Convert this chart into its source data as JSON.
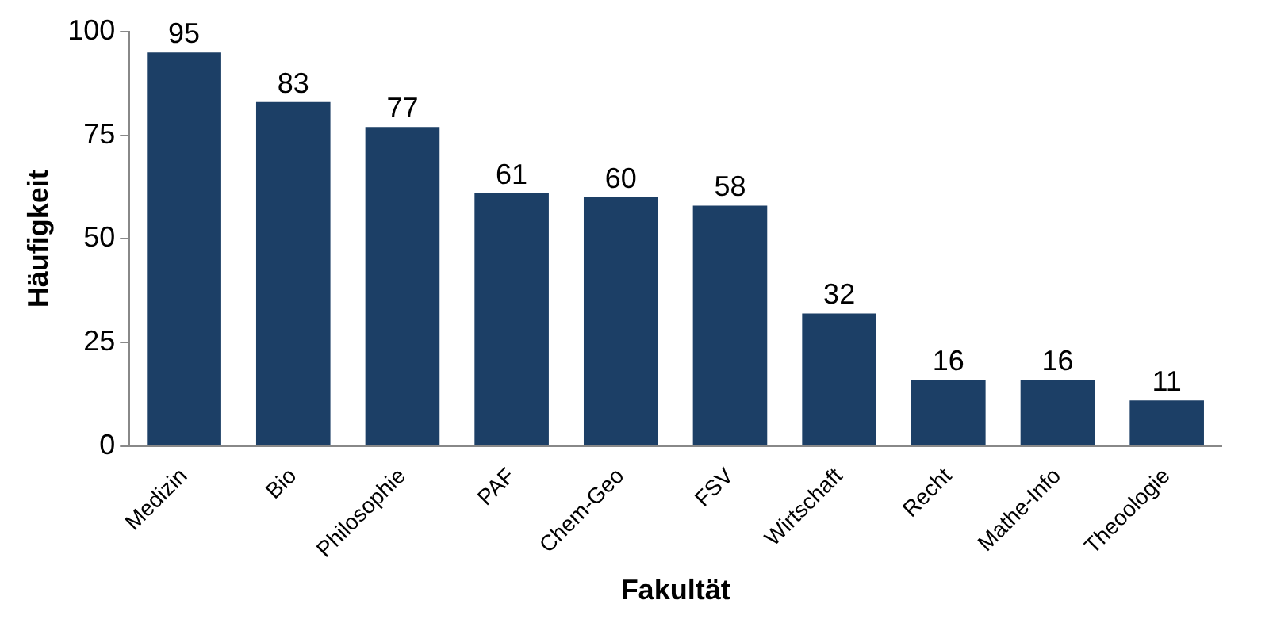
{
  "chart_data": {
    "type": "bar",
    "xlabel": "Fakultät",
    "ylabel": "Häufigkeit",
    "categories": [
      "Medizin",
      "Bio",
      "Philosophie",
      "PAF",
      "Chem-Geo",
      "FSV",
      "Wirtschaft",
      "Recht",
      "Mathe-Info",
      "Theoologie"
    ],
    "values": [
      95,
      83,
      77,
      61,
      60,
      58,
      32,
      16,
      16,
      11
    ],
    "color": "#1c3f66",
    "ylim": [
      0,
      100
    ],
    "yticks": [
      0,
      25,
      50,
      75,
      100
    ],
    "grid": false,
    "legend": false,
    "data_labels": true
  }
}
